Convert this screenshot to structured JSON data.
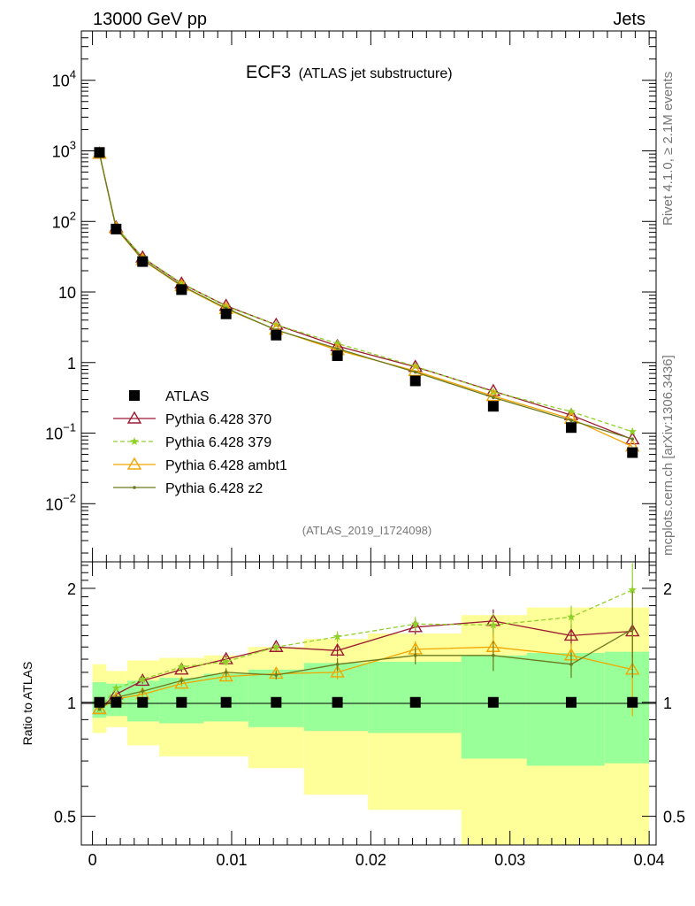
{
  "header": {
    "left": "13000 GeV pp",
    "right": "Jets"
  },
  "title": {
    "main": "ECF3",
    "sub": "(ATLAS jet substructure)"
  },
  "side": {
    "top": "Rivet 4.1.0, ≥ 2.1M events",
    "bottom": "mcplots.cern.ch [arXiv:1306.3436]"
  },
  "analysis_id": "(ATLAS_2019_I1724098)",
  "ratio_ylabel": "Ratio to ATLAS",
  "colors": {
    "data": "#000000",
    "p370": "#9b1b30",
    "p379": "#8fd12a",
    "ambt1": "#f0a500",
    "z2": "#6b7a1d",
    "band_inner": "#99ff99",
    "band_outer": "#ffff99"
  },
  "chart_data": {
    "type": "scatter",
    "x_ticks": [
      "0",
      "0.01",
      "0.02",
      "0.03",
      "0.04"
    ],
    "x_tick_values": [
      0,
      0.01,
      0.02,
      0.03,
      0.04
    ],
    "xlim": [
      -0.0008,
      0.0405
    ],
    "main": {
      "yscale": "log",
      "ylim": [
        0.0015,
        50000
      ],
      "y_ticks": [
        {
          "value": 10000,
          "base": "10",
          "exp": "4"
        },
        {
          "value": 1000,
          "base": "10",
          "exp": "3"
        },
        {
          "value": 100,
          "base": "10",
          "exp": "2"
        },
        {
          "value": 10,
          "base": "10",
          "exp": ""
        },
        {
          "value": 1,
          "base": "1",
          "exp": ""
        },
        {
          "value": 0.1,
          "base": "10",
          "exp": "−1"
        },
        {
          "value": 0.01,
          "base": "10",
          "exp": "−2"
        }
      ]
    },
    "ratio": {
      "yscale": "log",
      "ylim": [
        0.42,
        2.35
      ],
      "y_ticks": [
        {
          "value": 0.5,
          "label": "0.5"
        },
        {
          "value": 1,
          "label": "1"
        },
        {
          "value": 2,
          "label": "2"
        }
      ]
    },
    "bins": [
      {
        "x": 0.0005,
        "lo": 0.0,
        "hi": 0.001
      },
      {
        "x": 0.0017,
        "lo": 0.001,
        "hi": 0.0025
      },
      {
        "x": 0.0036,
        "lo": 0.0025,
        "hi": 0.0048
      },
      {
        "x": 0.0064,
        "lo": 0.0048,
        "hi": 0.008
      },
      {
        "x": 0.0096,
        "lo": 0.008,
        "hi": 0.0112
      },
      {
        "x": 0.0132,
        "lo": 0.0112,
        "hi": 0.0152
      },
      {
        "x": 0.0176,
        "lo": 0.0152,
        "hi": 0.0198
      },
      {
        "x": 0.0232,
        "lo": 0.0198,
        "hi": 0.0265
      },
      {
        "x": 0.0288,
        "lo": 0.0265,
        "hi": 0.0312
      },
      {
        "x": 0.0344,
        "lo": 0.0312,
        "hi": 0.0368
      },
      {
        "x": 0.0388,
        "lo": 0.0368,
        "hi": 0.04
      }
    ],
    "data": {
      "name": "ATLAS",
      "values": [
        950,
        78,
        27,
        10.8,
        4.9,
        2.45,
        1.25,
        0.55,
        0.24,
        0.12,
        0.053
      ]
    },
    "bands": {
      "inner": [
        [
          0.91,
          1.13
        ],
        [
          0.92,
          1.12
        ],
        [
          0.89,
          1.14
        ],
        [
          0.88,
          1.16
        ],
        [
          0.89,
          1.19
        ],
        [
          0.86,
          1.22
        ],
        [
          0.84,
          1.27
        ],
        [
          0.83,
          1.28
        ],
        [
          0.71,
          1.33
        ],
        [
          0.68,
          1.35
        ],
        [
          0.69,
          1.36
        ]
      ],
      "outer": [
        [
          0.83,
          1.26
        ],
        [
          0.86,
          1.21
        ],
        [
          0.77,
          1.29
        ],
        [
          0.72,
          1.31
        ],
        [
          0.72,
          1.33
        ],
        [
          0.67,
          1.4
        ],
        [
          0.57,
          1.47
        ],
        [
          0.52,
          1.52
        ],
        [
          0.4,
          1.7
        ],
        [
          0.4,
          1.78
        ],
        [
          0.4,
          1.78
        ]
      ]
    },
    "series": [
      {
        "name": "Pythia 6.428 370",
        "key": "p370",
        "marker": "triangle-open",
        "dash": false,
        "ratio": [
          0.96,
          1.05,
          1.14,
          1.22,
          1.3,
          1.4,
          1.37,
          1.58,
          1.64,
          1.5,
          1.54
        ],
        "err": [
          0.01,
          0.01,
          0.02,
          0.02,
          0.03,
          0.03,
          0.05,
          0.07,
          0.12,
          0.1,
          0.22
        ]
      },
      {
        "name": "Pythia 6.428 379",
        "key": "p379",
        "marker": "star",
        "dash": true,
        "ratio": [
          0.96,
          1.09,
          1.15,
          1.24,
          1.28,
          1.4,
          1.49,
          1.61,
          1.6,
          1.68,
          1.98
        ],
        "err": [
          0.01,
          0.01,
          0.02,
          0.02,
          0.03,
          0.03,
          0.05,
          0.07,
          0.12,
          0.12,
          0.35
        ]
      },
      {
        "name": "Pythia 6.428 ambt1",
        "key": "ambt1",
        "marker": "triangle-open",
        "dash": false,
        "ratio": [
          0.96,
          1.02,
          1.05,
          1.12,
          1.17,
          1.19,
          1.2,
          1.38,
          1.4,
          1.33,
          1.22
        ],
        "err": [
          0.01,
          0.01,
          0.02,
          0.02,
          0.03,
          0.03,
          0.05,
          0.07,
          0.12,
          0.1,
          0.3
        ]
      },
      {
        "name": "Pythia 6.428 z2",
        "key": "z2",
        "marker": "dot",
        "dash": false,
        "ratio": [
          0.96,
          1.03,
          1.07,
          1.14,
          1.2,
          1.18,
          1.26,
          1.33,
          1.33,
          1.26,
          1.56
        ],
        "err": [
          0.01,
          0.01,
          0.02,
          0.02,
          0.03,
          0.03,
          0.05,
          0.07,
          0.12,
          0.1,
          0.4
        ]
      }
    ]
  }
}
